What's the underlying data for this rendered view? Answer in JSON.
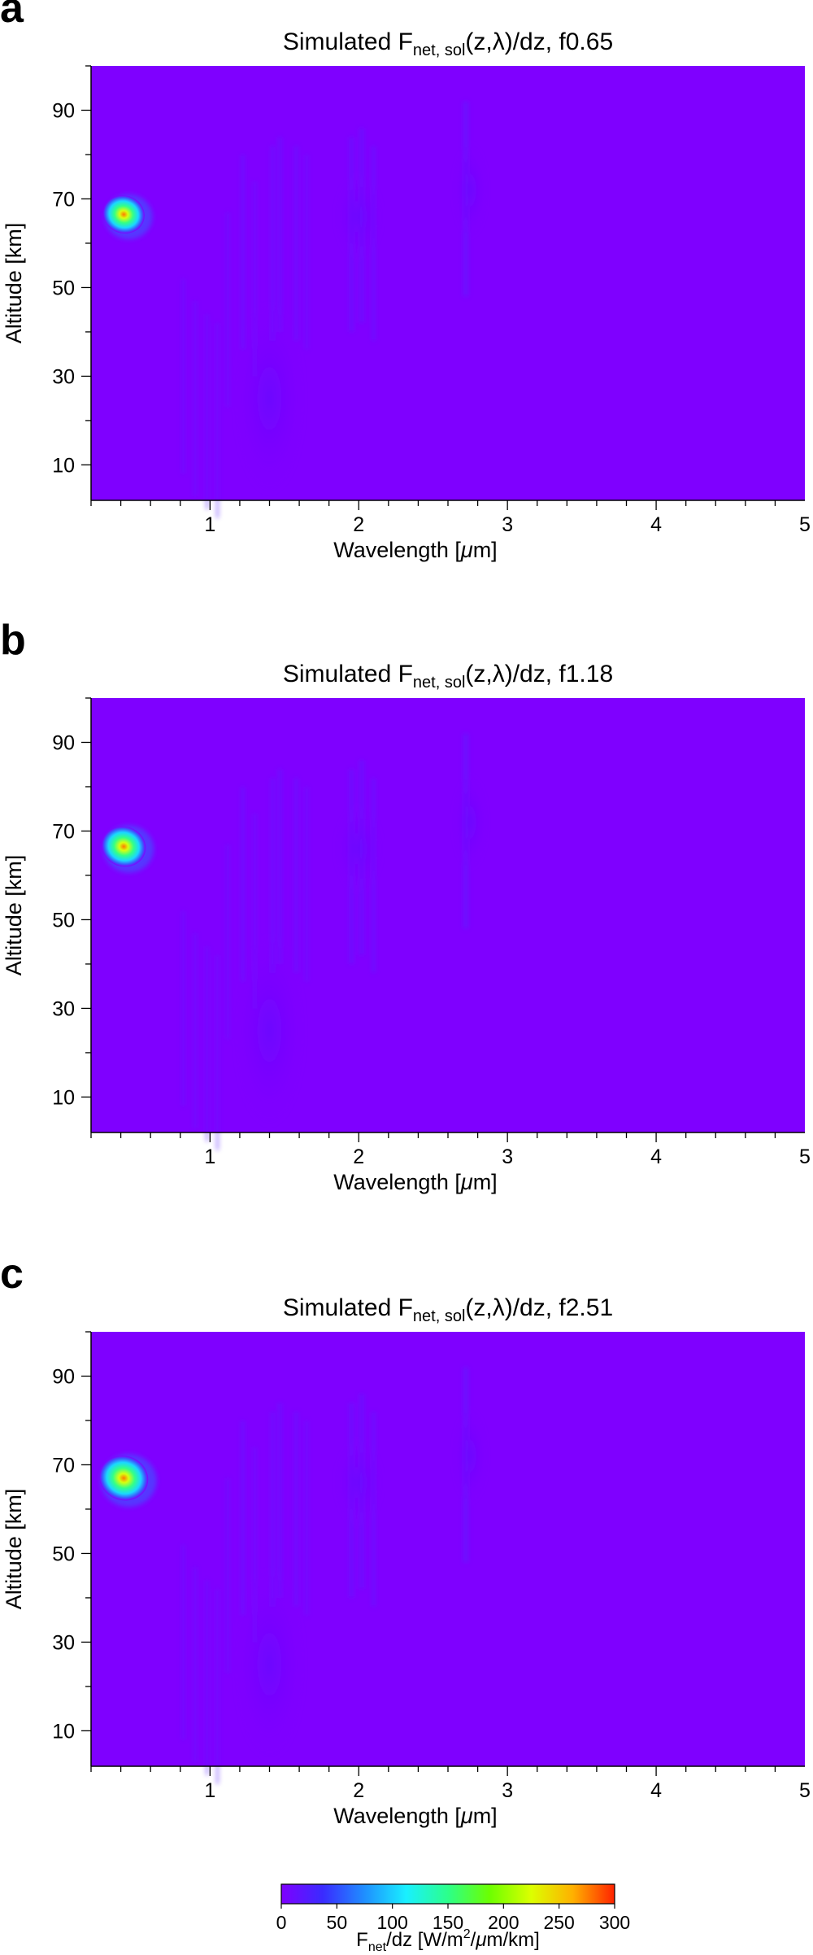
{
  "chart_data": {
    "type": "heatmap",
    "panels": [
      {
        "letter": "a",
        "title_prefix": "Simulated F",
        "title_sub": "net, sol",
        "title_suffix": "(z,λ)/dz, f0.65",
        "xlabel_prefix": "Wavelength [",
        "xlabel_unit": "μ",
        "xlabel_suffix": "m]",
        "ylabel": "Altitude [km]",
        "xlim": [
          0.2,
          5
        ],
        "ylim": [
          2,
          100
        ],
        "xticks": [
          1,
          2,
          3,
          4,
          5
        ],
        "yticks": [
          10,
          30,
          50,
          70,
          90
        ],
        "hotspot": {
          "wavelength_um": 0.42,
          "altitude_km": 66.5,
          "peak": 185
        }
      },
      {
        "letter": "b",
        "title_prefix": "Simulated F",
        "title_sub": "net, sol",
        "title_suffix": "(z,λ)/dz, f1.18",
        "xlabel_prefix": "Wavelength [",
        "xlabel_unit": "μ",
        "xlabel_suffix": "m]",
        "ylabel": "Altitude [km]",
        "xlim": [
          0.2,
          5
        ],
        "ylim": [
          2,
          100
        ],
        "xticks": [
          1,
          2,
          3,
          4,
          5
        ],
        "yticks": [
          10,
          30,
          50,
          70,
          90
        ],
        "hotspot": {
          "wavelength_um": 0.42,
          "altitude_km": 66.5,
          "peak": 215
        }
      },
      {
        "letter": "c",
        "title_prefix": "Simulated F",
        "title_sub": "net, sol",
        "title_suffix": "(z,λ)/dz, f2.51",
        "xlabel_prefix": "Wavelength [",
        "xlabel_unit": "μ",
        "xlabel_suffix": "m]",
        "ylabel": "Altitude [km]",
        "xlim": [
          0.2,
          5
        ],
        "ylim": [
          2,
          100
        ],
        "xticks": [
          1,
          2,
          3,
          4,
          5
        ],
        "yticks": [
          10,
          30,
          50,
          70,
          90
        ],
        "hotspot": {
          "wavelength_um": 0.42,
          "altitude_km": 67,
          "peak": 275
        }
      }
    ],
    "colorbar": {
      "range": [
        0,
        300
      ],
      "ticks": [
        0,
        50,
        100,
        150,
        200,
        250,
        300
      ],
      "label_parts": [
        "F",
        "net",
        "/dz [W/m",
        "2",
        "/",
        "μ",
        "m/km]"
      ],
      "colors": [
        "#7f00ff",
        "#3a2bff",
        "#1f8fff",
        "#19f0ff",
        "#2cff8a",
        "#6cff00",
        "#dcff00",
        "#ffb000",
        "#ff2200"
      ]
    },
    "background_color": "#7f00ff"
  }
}
